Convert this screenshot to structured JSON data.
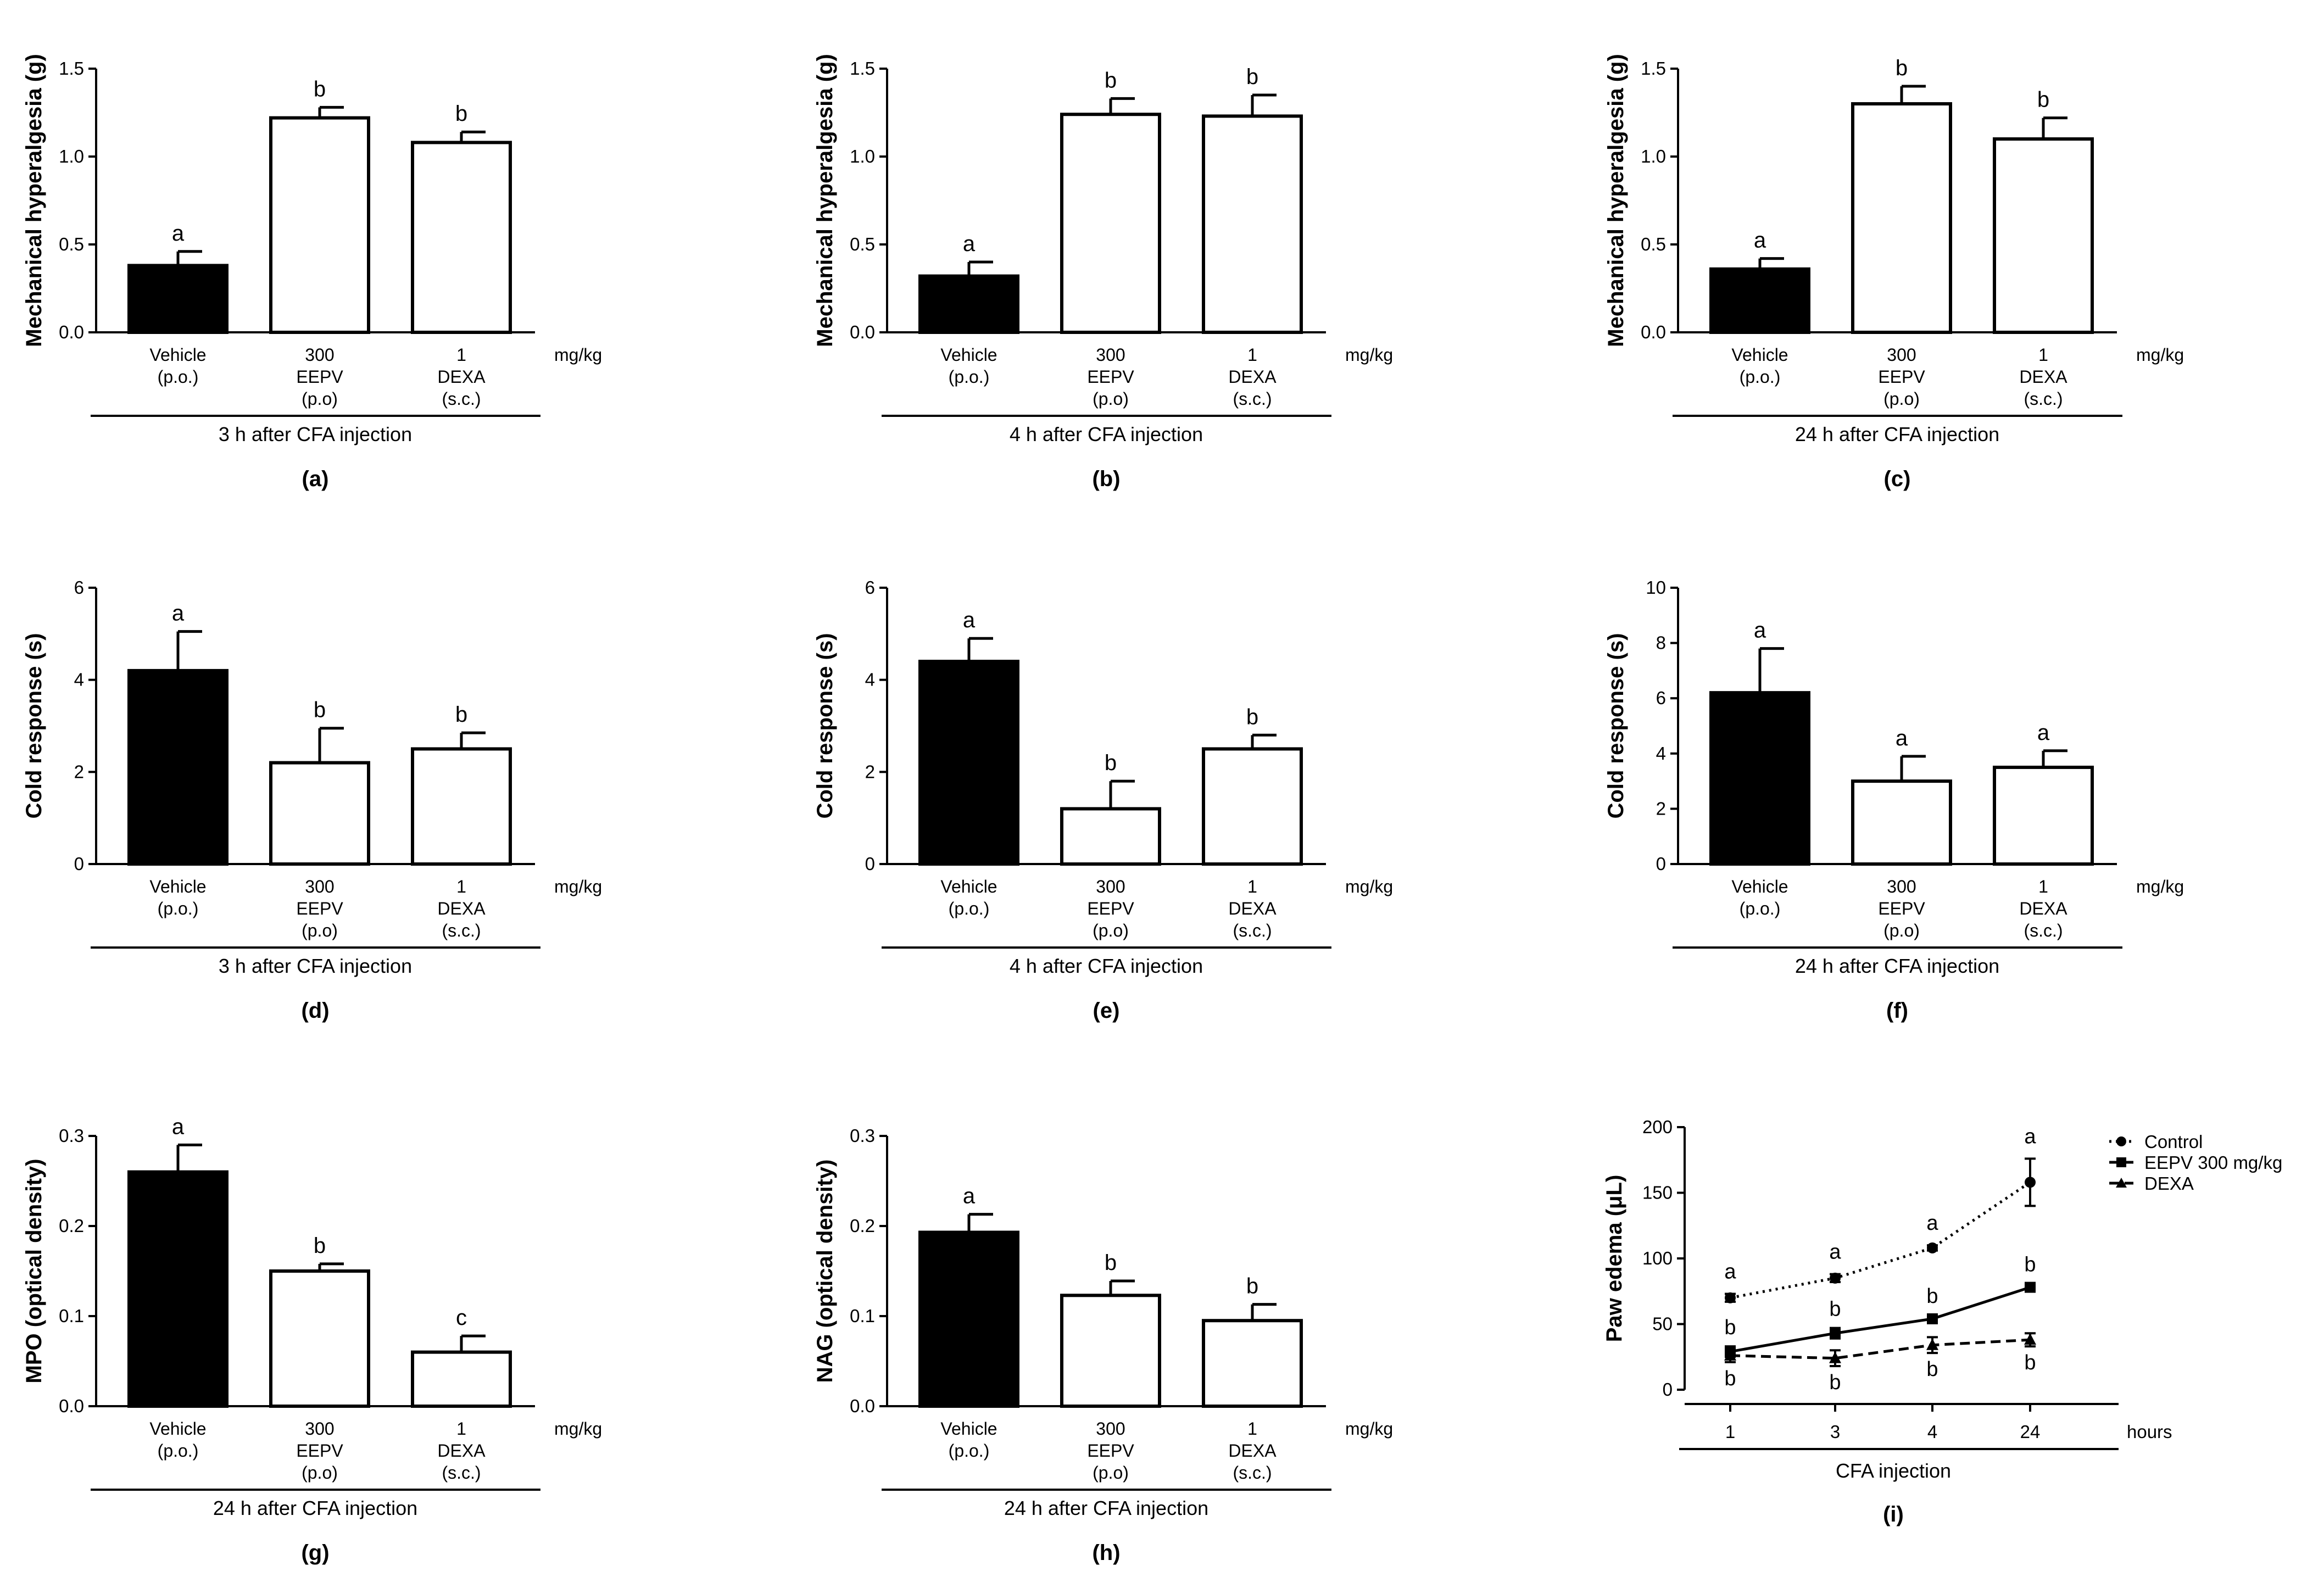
{
  "colors": {
    "ink": "#000000",
    "filled_bar": "#000000",
    "open_bar": "#ffffff",
    "background": "#ffffff"
  },
  "chart_data": [
    {
      "panel": "(a)",
      "type": "bar",
      "ylabel": "Mechanical hyperalgesia (g)",
      "ylim": [
        0,
        1.5
      ],
      "yticks": [
        0,
        0.5,
        1.0,
        1.5
      ],
      "tick_decimals": 1,
      "dose_unit": "mg/kg",
      "categories": [
        {
          "dose": "Vehicle",
          "name": "(p.o.)",
          "route": ""
        },
        {
          "dose": "300",
          "name": "EEPV",
          "route": "(p.o)"
        },
        {
          "dose": "1",
          "name": "DEXA",
          "route": "(s.c.)"
        }
      ],
      "values": [
        0.38,
        1.22,
        1.08
      ],
      "errors": [
        0.08,
        0.06,
        0.06
      ],
      "bar_fill": [
        "filled",
        "open",
        "open"
      ],
      "sig_letters": [
        "a",
        "b",
        "b"
      ],
      "group_label": "3 h after CFA injection"
    },
    {
      "panel": "(b)",
      "type": "bar",
      "ylabel": "Mechanical hyperalgesia (g)",
      "ylim": [
        0,
        1.5
      ],
      "yticks": [
        0,
        0.5,
        1.0,
        1.5
      ],
      "tick_decimals": 1,
      "dose_unit": "mg/kg",
      "categories": [
        {
          "dose": "Vehicle",
          "name": "(p.o.)",
          "route": ""
        },
        {
          "dose": "300",
          "name": "EEPV",
          "route": "(p.o)"
        },
        {
          "dose": "1",
          "name": "DEXA",
          "route": "(s.c.)"
        }
      ],
      "values": [
        0.32,
        1.24,
        1.23
      ],
      "errors": [
        0.08,
        0.09,
        0.12
      ],
      "bar_fill": [
        "filled",
        "open",
        "open"
      ],
      "sig_letters": [
        "a",
        "b",
        "b"
      ],
      "group_label": "4 h after CFA injection"
    },
    {
      "panel": "(c)",
      "type": "bar",
      "ylabel": "Mechanical hyperalgesia (g)",
      "ylim": [
        0,
        1.5
      ],
      "yticks": [
        0,
        0.5,
        1.0,
        1.5
      ],
      "tick_decimals": 1,
      "dose_unit": "mg/kg",
      "categories": [
        {
          "dose": "Vehicle",
          "name": "(p.o.)",
          "route": ""
        },
        {
          "dose": "300",
          "name": "EEPV",
          "route": "(p.o)"
        },
        {
          "dose": "1",
          "name": "DEXA",
          "route": "(s.c.)"
        }
      ],
      "values": [
        0.36,
        1.3,
        1.1
      ],
      "errors": [
        0.06,
        0.1,
        0.12
      ],
      "bar_fill": [
        "filled",
        "open",
        "open"
      ],
      "sig_letters": [
        "a",
        "b",
        "b"
      ],
      "group_label": "24 h after CFA injection"
    },
    {
      "panel": "(d)",
      "type": "bar",
      "ylabel": "Cold response (s)",
      "ylim": [
        0,
        6
      ],
      "yticks": [
        0,
        2,
        4,
        6
      ],
      "tick_decimals": 0,
      "dose_unit": "mg/kg",
      "categories": [
        {
          "dose": "Vehicle",
          "name": "(p.o.)",
          "route": ""
        },
        {
          "dose": "300",
          "name": "EEPV",
          "route": "(p.o)"
        },
        {
          "dose": "1",
          "name": "DEXA",
          "route": "(s.c.)"
        }
      ],
      "values": [
        4.2,
        2.2,
        2.5
      ],
      "errors": [
        0.85,
        0.75,
        0.35
      ],
      "bar_fill": [
        "filled",
        "open",
        "open"
      ],
      "sig_letters": [
        "a",
        "b",
        "b"
      ],
      "group_label": "3 h after CFA injection"
    },
    {
      "panel": "(e)",
      "type": "bar",
      "ylabel": "Cold response (s)",
      "ylim": [
        0,
        6
      ],
      "yticks": [
        0,
        2,
        4,
        6
      ],
      "tick_decimals": 0,
      "dose_unit": "mg/kg",
      "categories": [
        {
          "dose": "Vehicle",
          "name": "(p.o.)",
          "route": ""
        },
        {
          "dose": "300",
          "name": "EEPV",
          "route": "(p.o)"
        },
        {
          "dose": "1",
          "name": "DEXA",
          "route": "(s.c.)"
        }
      ],
      "values": [
        4.4,
        1.2,
        2.5
      ],
      "errors": [
        0.5,
        0.6,
        0.3
      ],
      "bar_fill": [
        "filled",
        "open",
        "open"
      ],
      "sig_letters": [
        "a",
        "b",
        "b"
      ],
      "group_label": "4 h after CFA injection"
    },
    {
      "panel": "(f)",
      "type": "bar",
      "ylabel": "Cold response (s)",
      "ylim": [
        0,
        10
      ],
      "yticks": [
        0,
        2,
        4,
        6,
        8,
        10
      ],
      "tick_decimals": 0,
      "dose_unit": "mg/kg",
      "categories": [
        {
          "dose": "Vehicle",
          "name": "(p.o.)",
          "route": ""
        },
        {
          "dose": "300",
          "name": "EEPV",
          "route": "(p.o)"
        },
        {
          "dose": "1",
          "name": "DEXA",
          "route": "(s.c.)"
        }
      ],
      "values": [
        6.2,
        3.0,
        3.5
      ],
      "errors": [
        1.6,
        0.9,
        0.6
      ],
      "bar_fill": [
        "filled",
        "open",
        "open"
      ],
      "sig_letters": [
        "a",
        "a",
        "a"
      ],
      "group_label": "24 h after CFA injection"
    },
    {
      "panel": "(g)",
      "type": "bar",
      "ylabel": "MPO (optical density)",
      "ylim": [
        0,
        0.3
      ],
      "yticks": [
        0,
        0.1,
        0.2,
        0.3
      ],
      "tick_decimals": 1,
      "dose_unit": "mg/kg",
      "categories": [
        {
          "dose": "Vehicle",
          "name": "(p.o.)",
          "route": ""
        },
        {
          "dose": "300",
          "name": "EEPV",
          "route": "(p.o)"
        },
        {
          "dose": "1",
          "name": "DEXA",
          "route": "(s.c.)"
        }
      ],
      "values": [
        0.26,
        0.15,
        0.06
      ],
      "errors": [
        0.03,
        0.008,
        0.018
      ],
      "bar_fill": [
        "filled",
        "open",
        "open"
      ],
      "sig_letters": [
        "a",
        "b",
        "c"
      ],
      "group_label": "24 h after CFA injection"
    },
    {
      "panel": "(h)",
      "type": "bar",
      "ylabel": "NAG (optical density)",
      "ylim": [
        0,
        0.3
      ],
      "yticks": [
        0,
        0.1,
        0.2,
        0.3
      ],
      "tick_decimals": 1,
      "dose_unit": "mg/kg",
      "categories": [
        {
          "dose": "Vehicle",
          "name": "(p.o.)",
          "route": ""
        },
        {
          "dose": "300",
          "name": "EEPV",
          "route": "(p.o)"
        },
        {
          "dose": "1",
          "name": "DEXA",
          "route": "(s.c.)"
        }
      ],
      "values": [
        0.193,
        0.123,
        0.095
      ],
      "errors": [
        0.02,
        0.016,
        0.018
      ],
      "bar_fill": [
        "filled",
        "open",
        "open"
      ],
      "sig_letters": [
        "a",
        "b",
        "b"
      ],
      "group_label": "24 h after CFA injection"
    },
    {
      "panel": "(i)",
      "type": "line",
      "ylabel": "Paw edema (μL)",
      "ylim": [
        0,
        200
      ],
      "yticks": [
        0,
        50,
        100,
        150,
        200
      ],
      "tick_decimals": 0,
      "x": [
        "1",
        "3",
        "4",
        "24"
      ],
      "xunit": "hours",
      "group_label": "CFA injection",
      "series": [
        {
          "name": "Control",
          "marker": "circle",
          "dash": "dotted",
          "values": [
            70,
            85,
            108,
            158
          ],
          "errors": [
            3,
            3,
            2,
            18
          ],
          "sig_letters": [
            "a",
            "a",
            "a",
            "a"
          ]
        },
        {
          "name": "EEPV 300 mg/kg",
          "marker": "square",
          "dash": "solid",
          "values": [
            29,
            43,
            54,
            78
          ],
          "errors": [
            4,
            4,
            3,
            3
          ],
          "sig_letters": [
            "b",
            "b",
            "b",
            "b"
          ]
        },
        {
          "name": "DEXA",
          "marker": "triangle",
          "dash": "dashed",
          "values": [
            26,
            24,
            34,
            38
          ],
          "errors": [
            5,
            6,
            6,
            5
          ],
          "sig_letters": [
            "b",
            "b",
            "b",
            "b"
          ]
        }
      ]
    }
  ]
}
